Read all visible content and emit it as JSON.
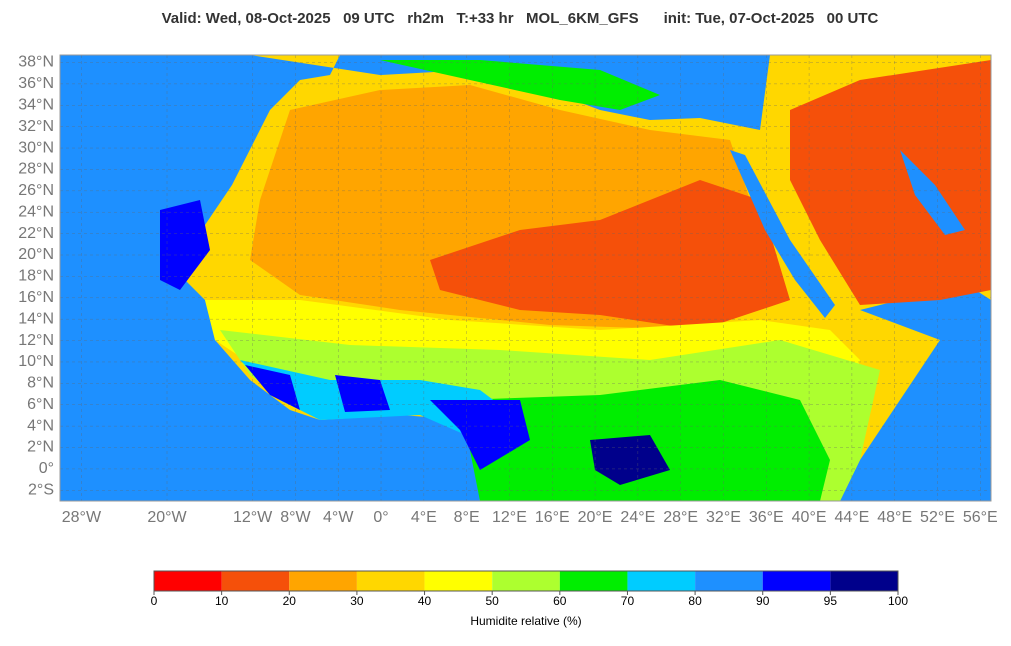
{
  "chart_data": {
    "type": "map",
    "title": "Valid: Wed, 08-Oct-2025   09 UTC   rh2m   T:+33 hr   MOL_6KM_GFS      init: Tue, 07-Oct-2025   00 UTC",
    "xlim": [
      -30,
      57
    ],
    "ylim": [
      -3,
      38.7
    ],
    "xticks": [
      {
        "value": -28,
        "label": "28°W"
      },
      {
        "value": -20,
        "label": "20°W"
      },
      {
        "value": -12,
        "label": "12°W"
      },
      {
        "value": -8,
        "label": "8°W"
      },
      {
        "value": -4,
        "label": "4°W"
      },
      {
        "value": 0,
        "label": "0°"
      },
      {
        "value": 4,
        "label": "4°E"
      },
      {
        "value": 8,
        "label": "8°E"
      },
      {
        "value": 12,
        "label": "12°E"
      },
      {
        "value": 16,
        "label": "16°E"
      },
      {
        "value": 20,
        "label": "20°E"
      },
      {
        "value": 24,
        "label": "24°E"
      },
      {
        "value": 28,
        "label": "28°E"
      },
      {
        "value": 32,
        "label": "32°E"
      },
      {
        "value": 36,
        "label": "36°E"
      },
      {
        "value": 40,
        "label": "40°E"
      },
      {
        "value": 44,
        "label": "44°E"
      },
      {
        "value": 48,
        "label": "48°E"
      },
      {
        "value": 52,
        "label": "52°E"
      },
      {
        "value": 56,
        "label": "56°E"
      }
    ],
    "yticks": [
      {
        "value": 38,
        "label": "38°N"
      },
      {
        "value": 36,
        "label": "36°N"
      },
      {
        "value": 34,
        "label": "34°N"
      },
      {
        "value": 32,
        "label": "32°N"
      },
      {
        "value": 30,
        "label": "30°N"
      },
      {
        "value": 28,
        "label": "28°N"
      },
      {
        "value": 26,
        "label": "26°N"
      },
      {
        "value": 24,
        "label": "24°N"
      },
      {
        "value": 22,
        "label": "22°N"
      },
      {
        "value": 20,
        "label": "20°N"
      },
      {
        "value": 18,
        "label": "18°N"
      },
      {
        "value": 16,
        "label": "16°N"
      },
      {
        "value": 14,
        "label": "14°N"
      },
      {
        "value": 12,
        "label": "12°N"
      },
      {
        "value": 10,
        "label": "10°N"
      },
      {
        "value": 8,
        "label": "8°N"
      },
      {
        "value": 6,
        "label": "6°N"
      },
      {
        "value": 4,
        "label": "4°N"
      },
      {
        "value": 2,
        "label": "2°N"
      },
      {
        "value": 0,
        "label": "0°"
      },
      {
        "value": -2,
        "label": "2°S"
      }
    ],
    "grid": true,
    "colorbar": {
      "label": "Humidite relative (%)",
      "levels": [
        0,
        10,
        20,
        30,
        40,
        50,
        60,
        70,
        80,
        90,
        95,
        100
      ],
      "colors": [
        "#ff0000",
        "#f5500a",
        "#ffa500",
        "#ffd700",
        "#ffff00",
        "#adff2f",
        "#00ee00",
        "#00ccff",
        "#1e90ff",
        "#0000ff",
        "#00008b"
      ]
    }
  }
}
